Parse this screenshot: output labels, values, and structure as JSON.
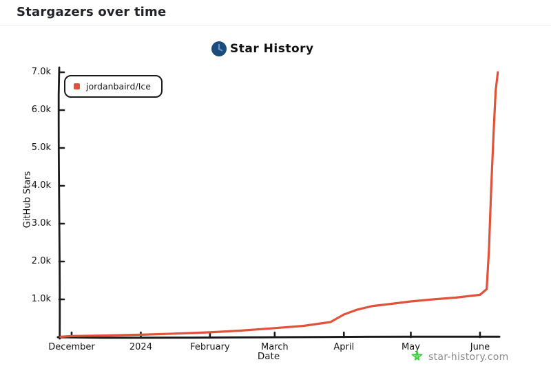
{
  "page": {
    "title": "Stargazers over time"
  },
  "chart": {
    "brand": {
      "title": "Star History",
      "logo_color": "#1c4b7d",
      "logo_hand_color": "#6fa0cc"
    },
    "legend": {
      "label": "jordanbaird/Ice",
      "marker_color": "#e0523a"
    },
    "attribution": {
      "text": "star-history.com",
      "text_color": "#8a8a8a",
      "star_color": "#3fce3f"
    }
  },
  "chart_data": {
    "type": "line",
    "title": "Star History",
    "xlabel": "Date",
    "ylabel": "GitHub Stars",
    "grid": false,
    "legend_position": "top-left",
    "x_range": [
      "2023-11-26",
      "2024-06-09"
    ],
    "ylim": [
      0,
      7000
    ],
    "x_ticks": [
      {
        "label": "December",
        "date": "2023-12-01"
      },
      {
        "label": "2024",
        "date": "2024-01-01"
      },
      {
        "label": "February",
        "date": "2024-02-01"
      },
      {
        "label": "March",
        "date": "2024-03-01"
      },
      {
        "label": "April",
        "date": "2024-04-01"
      },
      {
        "label": "May",
        "date": "2024-05-01"
      },
      {
        "label": "June",
        "date": "2024-06-01"
      }
    ],
    "y_ticks": [
      {
        "label": "1.0k",
        "value": 1000
      },
      {
        "label": "2.0k",
        "value": 2000
      },
      {
        "label": "3.0k",
        "value": 3000
      },
      {
        "label": "4.0k",
        "value": 4000
      },
      {
        "label": "5.0k",
        "value": 5000
      },
      {
        "label": "6.0k",
        "value": 6000
      },
      {
        "label": "7.0k",
        "value": 7000
      }
    ],
    "series": [
      {
        "name": "jordanbaird/Ice",
        "color": "#e0523a",
        "points": [
          {
            "date": "2023-11-26",
            "stars": 10
          },
          {
            "date": "2023-12-01",
            "stars": 30
          },
          {
            "date": "2023-12-16",
            "stars": 45
          },
          {
            "date": "2024-01-01",
            "stars": 65
          },
          {
            "date": "2024-01-16",
            "stars": 95
          },
          {
            "date": "2024-02-01",
            "stars": 130
          },
          {
            "date": "2024-02-15",
            "stars": 175
          },
          {
            "date": "2024-03-01",
            "stars": 240
          },
          {
            "date": "2024-03-14",
            "stars": 300
          },
          {
            "date": "2024-03-26",
            "stars": 400
          },
          {
            "date": "2024-04-01",
            "stars": 600
          },
          {
            "date": "2024-04-07",
            "stars": 730
          },
          {
            "date": "2024-04-14",
            "stars": 825
          },
          {
            "date": "2024-04-22",
            "stars": 880
          },
          {
            "date": "2024-05-01",
            "stars": 945
          },
          {
            "date": "2024-05-11",
            "stars": 1000
          },
          {
            "date": "2024-05-21",
            "stars": 1045
          },
          {
            "date": "2024-06-01",
            "stars": 1120
          },
          {
            "date": "2024-06-04",
            "stars": 1270
          },
          {
            "date": "2024-06-05",
            "stars": 2300
          },
          {
            "date": "2024-06-06",
            "stars": 3900
          },
          {
            "date": "2024-06-07",
            "stars": 5300
          },
          {
            "date": "2024-06-08",
            "stars": 6500
          },
          {
            "date": "2024-06-09",
            "stars": 7000
          }
        ]
      }
    ]
  }
}
